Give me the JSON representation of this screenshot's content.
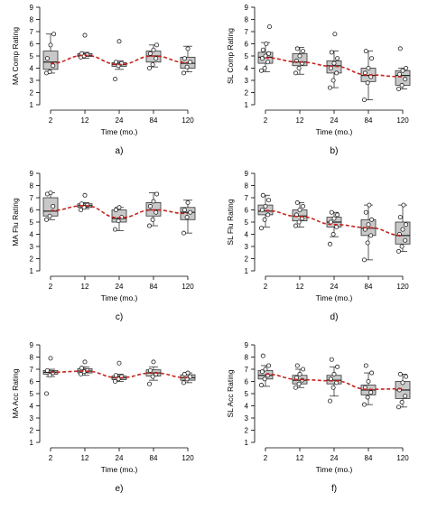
{
  "chart_data": [
    {
      "type": "box",
      "label": "a)",
      "ylabel": "MA Comp Rating",
      "xlabel": "Time (mo.)",
      "ylim": [
        1,
        9
      ],
      "yticks": [
        1,
        2,
        3,
        4,
        5,
        6,
        7,
        8,
        9
      ],
      "categories": [
        "2",
        "12",
        "24",
        "84",
        "120"
      ],
      "boxes": [
        {
          "min": 3.6,
          "q1": 3.9,
          "median": 4.5,
          "q3": 5.4,
          "max": 6.8
        },
        {
          "min": 4.8,
          "q1": 4.95,
          "median": 5.05,
          "q3": 5.2,
          "max": 5.3
        },
        {
          "min": 3.9,
          "q1": 4.15,
          "median": 4.3,
          "q3": 4.45,
          "max": 4.6
        },
        {
          "min": 4.1,
          "q1": 4.5,
          "median": 5.0,
          "q3": 5.4,
          "max": 5.9
        },
        {
          "min": 3.7,
          "q1": 4.0,
          "median": 4.4,
          "q3": 4.9,
          "max": 5.8
        }
      ],
      "points": [
        [
          3.6,
          3.7,
          4.2,
          4.8,
          5.9,
          6.8
        ],
        [
          4.9,
          5.0,
          5.1,
          5.2,
          6.7
        ],
        [
          3.1,
          4.2,
          4.4,
          4.5,
          6.2
        ],
        [
          4.0,
          4.3,
          4.8,
          5.2,
          5.5,
          5.9
        ],
        [
          3.6,
          4.1,
          4.5,
          4.8,
          5.6
        ]
      ],
      "trend": [
        4.4,
        5.05,
        4.3,
        5.0,
        4.45
      ]
    },
    {
      "type": "box",
      "label": "b)",
      "ylabel": "SL Comp Rating",
      "xlabel": "Time (mo.)",
      "ylim": [
        1,
        9
      ],
      "yticks": [
        1,
        2,
        3,
        4,
        5,
        6,
        7,
        8,
        9
      ],
      "categories": [
        "2",
        "12",
        "24",
        "84",
        "120"
      ],
      "boxes": [
        {
          "min": 3.7,
          "q1": 4.4,
          "median": 4.9,
          "q3": 5.3,
          "max": 6.1
        },
        {
          "min": 3.5,
          "q1": 4.2,
          "median": 4.5,
          "q3": 5.2,
          "max": 5.7
        },
        {
          "min": 2.4,
          "q1": 3.6,
          "median": 4.2,
          "q3": 4.6,
          "max": 5.4
        },
        {
          "min": 1.4,
          "q1": 2.9,
          "median": 3.4,
          "q3": 4.0,
          "max": 5.4
        },
        {
          "min": 2.3,
          "q1": 2.6,
          "median": 3.4,
          "q3": 3.8,
          "max": 4.0
        }
      ],
      "points": [
        [
          3.8,
          4.0,
          4.5,
          4.8,
          5.0,
          5.2,
          5.5,
          6.0,
          7.4
        ],
        [
          3.6,
          4.0,
          4.4,
          4.6,
          5.0,
          5.4,
          5.6
        ],
        [
          2.4,
          3.0,
          3.6,
          4.0,
          4.4,
          4.8,
          5.3,
          6.8
        ],
        [
          1.4,
          2.8,
          3.3,
          3.6,
          4.0,
          4.8,
          5.4
        ],
        [
          2.3,
          2.6,
          3.1,
          3.5,
          3.8,
          4.0,
          5.6
        ]
      ],
      "trend": [
        4.85,
        4.5,
        4.15,
        3.45,
        3.3
      ]
    },
    {
      "type": "box",
      "label": "c)",
      "ylabel": "MA Flu Rating",
      "xlabel": "Time (mo.)",
      "ylim": [
        1,
        9
      ],
      "yticks": [
        1,
        2,
        3,
        4,
        5,
        6,
        7,
        8,
        9
      ],
      "categories": [
        "2",
        "12",
        "24",
        "84",
        "120"
      ],
      "boxes": [
        {
          "min": 5.2,
          "q1": 5.5,
          "median": 5.9,
          "q3": 7.0,
          "max": 7.4
        },
        {
          "min": 6.1,
          "q1": 6.2,
          "median": 6.35,
          "q3": 6.5,
          "max": 6.6
        },
        {
          "min": 4.3,
          "q1": 5.0,
          "median": 5.3,
          "q3": 6.0,
          "max": 6.2
        },
        {
          "min": 4.7,
          "q1": 5.5,
          "median": 6.0,
          "q3": 6.6,
          "max": 7.4
        },
        {
          "min": 4.1,
          "q1": 5.2,
          "median": 5.8,
          "q3": 6.2,
          "max": 6.8
        }
      ],
      "points": [
        [
          5.2,
          5.5,
          6.3,
          7.3,
          7.4
        ],
        [
          6.0,
          6.2,
          6.4,
          6.5,
          7.2
        ],
        [
          4.4,
          5.1,
          5.4,
          6.0,
          6.2
        ],
        [
          4.7,
          5.2,
          5.8,
          6.3,
          6.7,
          7.3
        ],
        [
          4.1,
          5.4,
          5.8,
          6.0,
          6.6
        ]
      ],
      "trend": [
        5.95,
        6.35,
        5.35,
        6.0,
        5.7
      ]
    },
    {
      "type": "box",
      "label": "d)",
      "ylabel": "SL Flu Rating",
      "xlabel": "Time (mo.)",
      "ylim": [
        1,
        9
      ],
      "yticks": [
        1,
        2,
        3,
        4,
        5,
        6,
        7,
        8,
        9
      ],
      "categories": [
        "2",
        "12",
        "24",
        "84",
        "120"
      ],
      "boxes": [
        {
          "min": 4.6,
          "q1": 5.6,
          "median": 5.9,
          "q3": 6.4,
          "max": 7.2
        },
        {
          "min": 4.6,
          "q1": 5.1,
          "median": 5.5,
          "q3": 6.0,
          "max": 6.6
        },
        {
          "min": 3.8,
          "q1": 4.6,
          "median": 5.0,
          "q3": 5.4,
          "max": 5.8
        },
        {
          "min": 1.9,
          "q1": 3.9,
          "median": 4.5,
          "q3": 5.2,
          "max": 6.4
        },
        {
          "min": 2.6,
          "q1": 3.2,
          "median": 3.9,
          "q3": 5.0,
          "max": 6.4
        }
      ],
      "points": [
        [
          4.5,
          5.2,
          5.6,
          6.0,
          6.3,
          6.8,
          7.2
        ],
        [
          4.7,
          5.0,
          5.3,
          5.6,
          6.0,
          6.3,
          6.6
        ],
        [
          3.2,
          4.0,
          4.6,
          5.0,
          5.3,
          5.6,
          5.8
        ],
        [
          1.9,
          3.3,
          3.9,
          4.4,
          4.8,
          5.2,
          5.8,
          6.4
        ],
        [
          2.6,
          3.0,
          3.5,
          4.0,
          4.4,
          4.8,
          5.4,
          6.4
        ]
      ],
      "trend": [
        5.95,
        5.45,
        4.8,
        4.55,
        3.9
      ]
    },
    {
      "type": "box",
      "label": "e)",
      "ylabel": "MA Acc Rating",
      "xlabel": "Time (mo.)",
      "ylim": [
        1,
        9
      ],
      "yticks": [
        1,
        2,
        3,
        4,
        5,
        6,
        7,
        8,
        9
      ],
      "categories": [
        "2",
        "12",
        "24",
        "84",
        "120"
      ],
      "boxes": [
        {
          "min": 6.4,
          "q1": 6.6,
          "median": 6.75,
          "q3": 6.9,
          "max": 7.0
        },
        {
          "min": 6.5,
          "q1": 6.7,
          "median": 6.85,
          "q3": 7.05,
          "max": 7.2
        },
        {
          "min": 6.0,
          "q1": 6.15,
          "median": 6.3,
          "q3": 6.45,
          "max": 6.6
        },
        {
          "min": 6.1,
          "q1": 6.45,
          "median": 6.7,
          "q3": 6.95,
          "max": 7.2
        },
        {
          "min": 5.9,
          "q1": 6.1,
          "median": 6.3,
          "q3": 6.55,
          "max": 6.7
        }
      ],
      "points": [
        [
          5.0,
          6.5,
          6.7,
          6.9,
          7.9
        ],
        [
          6.6,
          6.8,
          6.9,
          7.1,
          7.6
        ],
        [
          6.0,
          6.2,
          6.4,
          6.5,
          7.5
        ],
        [
          5.8,
          6.4,
          6.6,
          6.9,
          7.6
        ],
        [
          5.9,
          6.2,
          6.4,
          6.6,
          6.7
        ]
      ],
      "trend": [
        6.75,
        6.85,
        6.3,
        6.7,
        6.3
      ]
    },
    {
      "type": "box",
      "label": "f)",
      "ylabel": "SL Acc Rating",
      "xlabel": "Time (mo.)",
      "ylim": [
        1,
        9
      ],
      "yticks": [
        1,
        2,
        3,
        4,
        5,
        6,
        7,
        8,
        9
      ],
      "categories": [
        "2",
        "12",
        "24",
        "84",
        "120"
      ],
      "boxes": [
        {
          "min": 5.6,
          "q1": 6.2,
          "median": 6.5,
          "q3": 6.9,
          "max": 7.3
        },
        {
          "min": 5.5,
          "q1": 5.8,
          "median": 6.1,
          "q3": 6.5,
          "max": 7.0
        },
        {
          "min": 4.8,
          "q1": 5.8,
          "median": 6.1,
          "q3": 6.5,
          "max": 7.2
        },
        {
          "min": 4.1,
          "q1": 4.9,
          "median": 5.3,
          "q3": 5.7,
          "max": 6.7
        },
        {
          "min": 3.9,
          "q1": 4.6,
          "median": 5.3,
          "q3": 6.0,
          "max": 6.6
        }
      ],
      "points": [
        [
          5.7,
          6.2,
          6.5,
          6.8,
          7.0,
          7.3,
          8.1
        ],
        [
          5.5,
          5.8,
          6.1,
          6.3,
          6.6,
          7.0,
          7.3
        ],
        [
          4.4,
          5.5,
          5.9,
          6.2,
          6.6,
          7.2,
          7.8
        ],
        [
          4.1,
          4.7,
          5.1,
          5.5,
          6.0,
          6.7,
          7.3
        ],
        [
          3.9,
          4.3,
          4.8,
          5.3,
          5.9,
          6.4,
          6.6
        ]
      ],
      "trend": [
        6.6,
        6.15,
        6.05,
        5.35,
        5.4
      ]
    }
  ]
}
